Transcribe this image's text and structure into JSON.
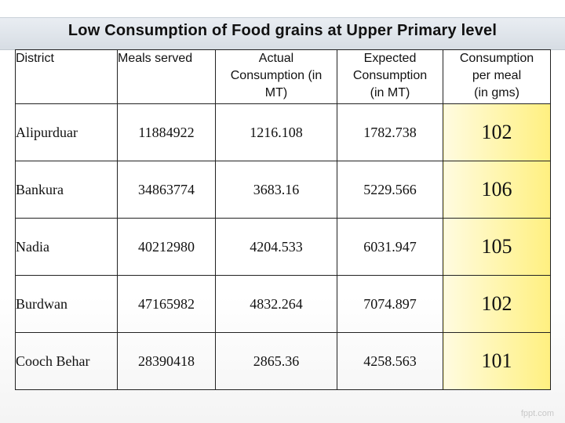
{
  "title": "Low Consumption of Food grains at Upper Primary level",
  "headers": {
    "district": "District",
    "meals": "Meals served",
    "actual_l1": "Actual",
    "actual_l2": "Consumption (in",
    "actual_l3": "MT)",
    "expected_l1": "Expected",
    "expected_l2": "Consumption",
    "expected_l3": "(in MT)",
    "cpm_l1": "Consumption",
    "cpm_l2": "per meal",
    "cpm_l3": "(in gms)"
  },
  "rows": [
    {
      "district": "Alipurduar",
      "meals": "11884922",
      "actual": "1216.108",
      "expected": "1782.738",
      "cpm": "102"
    },
    {
      "district": "Bankura",
      "meals": "34863774",
      "actual": "3683.16",
      "expected": "5229.566",
      "cpm": "106"
    },
    {
      "district": "Nadia",
      "meals": "40212980",
      "actual": "4204.533",
      "expected": "6031.947",
      "cpm": "105"
    },
    {
      "district": "Burdwan",
      "meals": "47165982",
      "actual": "4832.264",
      "expected": "7074.897",
      "cpm": "102"
    },
    {
      "district": "Cooch Behar",
      "meals": "28390418",
      "actual": "2865.36",
      "expected": "4258.563",
      "cpm": "101"
    }
  ],
  "footer": "fppt.com"
}
